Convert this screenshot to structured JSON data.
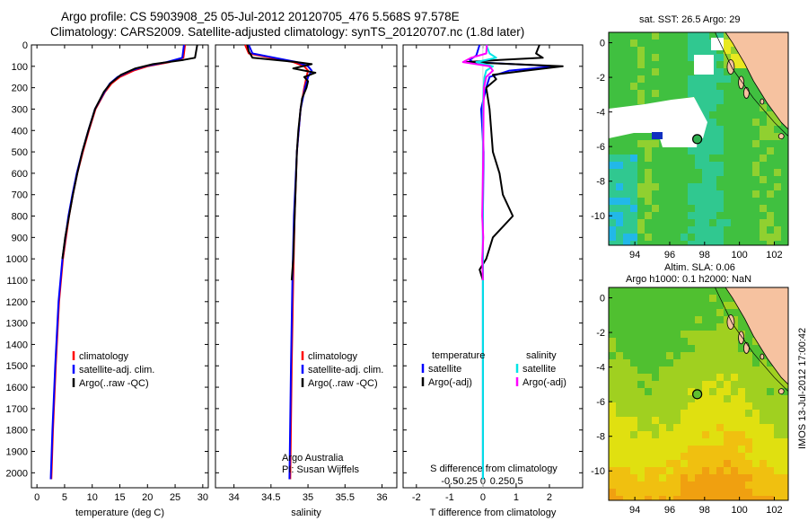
{
  "title_line1": "Argo profile: CS 5903908_25 05-Jul-2012 20120705_476 5.568S 97.578E",
  "title_line2": "Climatology: CARS2009. Satellite-adjusted climatology: synTS_20120707.nc (1.8d later)",
  "map1_title": "sat. SST: 26.5 Argo: 29",
  "map2_title_line1": "Altim. SLA: 0.06",
  "map2_title_line2": "Argo h1000: 0.1 h2000: NaN",
  "stamp": "IMOS 13-Jul-2012 17:00:42",
  "colors": {
    "climatology": "#ff0000",
    "satellite": "#0000ff",
    "argo": "#000000",
    "sat_salinity": "#00e5e5",
    "argo_salinity": "#ff00ff",
    "land": "#f6c2a0",
    "nodata": "#ffffff"
  },
  "chart_data": [
    {
      "type": "line",
      "name": "temperature-profile",
      "xlabel": "temperature (deg C)",
      "ylabel": "",
      "xlim": [
        -1,
        31
      ],
      "ylim": [
        2070,
        0
      ],
      "xticks": [
        0,
        5,
        10,
        15,
        20,
        25,
        30
      ],
      "yticks": [
        0,
        100,
        200,
        300,
        400,
        500,
        600,
        700,
        800,
        900,
        1000,
        1100,
        1200,
        1300,
        1400,
        1500,
        1600,
        1700,
        1800,
        1900,
        2000
      ],
      "legend": [
        "climatology",
        "satellite-adj. clim.",
        "Argo(..raw -QC)"
      ],
      "series": [
        {
          "name": "climatology",
          "color": "#ff0000",
          "depth": [
            0,
            60,
            80,
            100,
            120,
            150,
            180,
            220,
            300,
            400,
            500,
            600,
            700,
            800,
            1000,
            1200,
            1500,
            1800,
            2030
          ],
          "values": [
            26.8,
            26.5,
            24,
            20,
            17.5,
            15,
            13.5,
            12.3,
            10.6,
            9.4,
            8.3,
            7.3,
            6.5,
            5.8,
            4.7,
            4,
            3.4,
            2.9,
            2.6
          ]
        },
        {
          "name": "satellite-adj. clim.",
          "color": "#0000ff",
          "depth": [
            0,
            60,
            80,
            100,
            120,
            150,
            180,
            220,
            300,
            400,
            500,
            600,
            700,
            800,
            1000,
            1200,
            1500,
            1800,
            2030
          ],
          "values": [
            26.6,
            26.3,
            23.5,
            19.5,
            17,
            14.6,
            13.2,
            12.2,
            10.5,
            9.3,
            8.2,
            7.2,
            6.4,
            5.7,
            4.6,
            3.9,
            3.3,
            2.8,
            2.5
          ]
        },
        {
          "name": "Argo(..raw -QC)",
          "color": "#000000",
          "depth": [
            0,
            60,
            70,
            90,
            110,
            140,
            180,
            220,
            300,
            400,
            500,
            600,
            700,
            800,
            900,
            1000
          ],
          "values": [
            29,
            28.6,
            26.5,
            21,
            17.8,
            15.2,
            13.3,
            12.1,
            10.5,
            9.3,
            8.2,
            7.3,
            6.5,
            5.8,
            5.1,
            4.6
          ]
        }
      ]
    },
    {
      "type": "line",
      "name": "salinity-profile",
      "xlabel": "salinity",
      "xlim": [
        33.75,
        36.2
      ],
      "ylim": [
        2070,
        0
      ],
      "xticks": [
        34,
        34.5,
        35,
        35.5,
        36
      ],
      "xticklabels": [
        "34",
        "34.5",
        "35",
        "35.5",
        "36"
      ],
      "legend": [
        "climatology",
        "satellite-adj. clim.",
        "Argo(..raw -QC)"
      ],
      "annotation": [
        "Argo Australia",
        "PI: Susan Wijffels"
      ],
      "series": [
        {
          "name": "climatology",
          "color": "#ff0000",
          "depth": [
            0,
            40,
            60,
            80,
            100,
            120,
            150,
            200,
            300,
            500,
            800,
            1100,
            1500,
            2030
          ],
          "values": [
            34.15,
            34.2,
            34.5,
            34.8,
            34.95,
            35.0,
            34.98,
            34.95,
            34.9,
            34.85,
            34.82,
            34.8,
            34.78,
            34.76
          ]
        },
        {
          "name": "satellite-adj. clim.",
          "color": "#0000ff",
          "depth": [
            0,
            40,
            60,
            80,
            100,
            120,
            150,
            200,
            300,
            500,
            800,
            1100,
            1500,
            2030
          ],
          "values": [
            34.2,
            34.25,
            34.55,
            34.85,
            35.0,
            35.05,
            35.0,
            34.96,
            34.9,
            34.85,
            34.81,
            34.79,
            34.77,
            34.75
          ]
        },
        {
          "name": "Argo(..raw -QC)",
          "color": "#000000",
          "depth": [
            0,
            30,
            60,
            80,
            90,
            110,
            130,
            150,
            170,
            200,
            250,
            300,
            400,
            500,
            600,
            800,
            1000,
            1100
          ],
          "values": [
            34.18,
            34.2,
            34.25,
            34.85,
            35.05,
            34.8,
            35.1,
            34.95,
            35.0,
            34.98,
            34.92,
            34.9,
            34.87,
            34.85,
            34.84,
            34.82,
            34.8,
            34.78
          ]
        }
      ]
    },
    {
      "type": "line",
      "name": "difference-profile",
      "xlabel": "T difference from climatology",
      "xlabel_top": "S difference from climatology",
      "xlim": [
        -2.4,
        3.0
      ],
      "ylim": [
        2070,
        0
      ],
      "xticks": [
        -2,
        -1,
        0,
        1,
        2
      ],
      "xticks_top": [
        -0.5,
        -0.25,
        0,
        0.25,
        0.5
      ],
      "legend_left": {
        "header": "temperature",
        "items": [
          "satellite",
          "Argo(-adj)"
        ]
      },
      "legend_right": {
        "header": "salinity",
        "items": [
          "satellite",
          "Argo(-adj)"
        ]
      },
      "series": [
        {
          "name": "temperature satellite",
          "color": "#0000ff",
          "depth": [
            0,
            50,
            70,
            80,
            100,
            120,
            150,
            200,
            300,
            500,
            800,
            1200,
            2030
          ],
          "values": [
            -0.1,
            -0.2,
            -0.4,
            -0.3,
            2.2,
            0.8,
            0.2,
            0.1,
            -0.05,
            0.02,
            0,
            0,
            0
          ]
        },
        {
          "name": "temperature Argo(-adj)",
          "color": "#000000",
          "depth": [
            0,
            40,
            60,
            70,
            80,
            100,
            120,
            140,
            160,
            200,
            300,
            500,
            600,
            700,
            800,
            850,
            900,
            1000,
            1050,
            1100
          ],
          "values": [
            1.7,
            1.6,
            1.8,
            0.5,
            -0.5,
            2.4,
            1.3,
            0.3,
            0.4,
            0.1,
            0.2,
            0.3,
            0.5,
            0.6,
            0.9,
            0.6,
            0.3,
            0.1,
            -0.1,
            0
          ]
        },
        {
          "name": "salinity satellite",
          "color": "#00e5e5",
          "depth": [
            0,
            40,
            60,
            80,
            100,
            120,
            150,
            200,
            300,
            500,
            900,
            1500,
            2030
          ],
          "values": [
            0.1,
            0.2,
            0.4,
            -0.2,
            0.3,
            0.1,
            0.05,
            0.02,
            0,
            0,
            0,
            0,
            0
          ]
        },
        {
          "name": "salinity Argo(-adj)",
          "color": "#ff00ff",
          "depth": [
            0,
            40,
            60,
            80,
            100,
            120,
            150,
            200,
            300,
            500,
            800,
            900,
            1000,
            1100
          ],
          "values": [
            0.12,
            0.1,
            -0.35,
            -0.6,
            0.2,
            0.3,
            0.1,
            0.03,
            0.02,
            0.01,
            -0.02,
            0.01,
            -0.02,
            0
          ]
        }
      ]
    },
    {
      "type": "heatmap",
      "name": "sst-map",
      "title": "sat. SST: 26.5 Argo: 29",
      "xlim": [
        92.5,
        102.8
      ],
      "ylim": [
        -11.7,
        0.6
      ],
      "xticks": [
        94,
        96,
        98,
        100,
        102
      ],
      "yticks": [
        0,
        -2,
        -4,
        -6,
        -8,
        -10
      ],
      "marker": {
        "lon": 97.578,
        "lat": -5.568
      }
    },
    {
      "type": "heatmap",
      "name": "sla-map",
      "title": "Altim. SLA: 0.06",
      "xlim": [
        92.5,
        102.8
      ],
      "ylim": [
        -11.7,
        0.6
      ],
      "xticks": [
        94,
        96,
        98,
        100,
        102
      ],
      "yticks": [
        0,
        -2,
        -4,
        -6,
        -8,
        -10
      ],
      "marker": {
        "lon": 97.578,
        "lat": -5.568
      }
    }
  ]
}
